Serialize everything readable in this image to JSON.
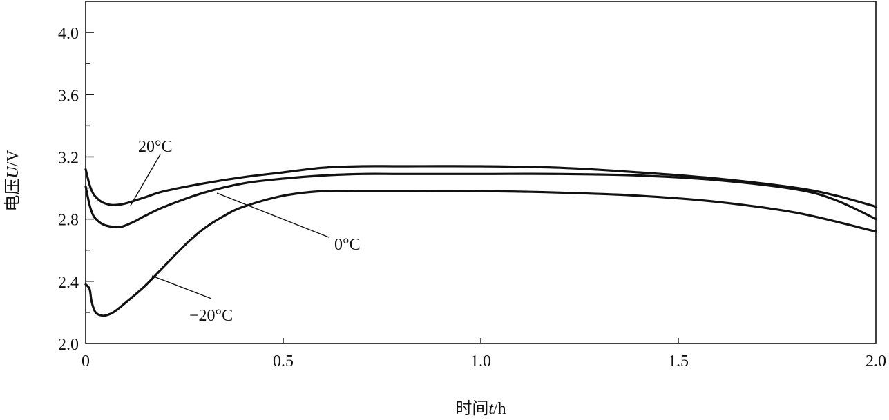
{
  "chart_data": {
    "type": "line",
    "xlabel_parts": [
      "时间",
      "t",
      "/h"
    ],
    "ylabel_parts": [
      "电压",
      "U",
      "/V"
    ],
    "xlim": [
      0,
      2.0
    ],
    "ylim": [
      2.0,
      4.2
    ],
    "x_ticks": [
      0,
      0.5,
      1.0,
      1.5,
      2.0
    ],
    "x_tick_labels": [
      "0",
      "0.5",
      "1.0",
      "1.5",
      "2.0"
    ],
    "y_major_ticks": [
      2.0,
      2.4,
      2.8,
      3.2,
      3.6,
      4.0
    ],
    "y_tick_labels": [
      "2.0",
      "2.4",
      "2.8",
      "3.2",
      "3.6",
      "4.0"
    ],
    "y_minor_ticks": [
      2.2,
      2.6,
      3.0,
      3.4,
      3.8
    ],
    "grid": false,
    "line_color": "#111111",
    "series": [
      {
        "name": "20°C",
        "x": [
          0,
          0.01,
          0.02,
          0.035,
          0.05,
          0.07,
          0.1,
          0.15,
          0.2,
          0.3,
          0.4,
          0.5,
          0.6,
          0.7,
          0.8,
          1.0,
          1.2,
          1.4,
          1.6,
          1.8,
          1.9,
          2.0
        ],
        "y": [
          3.12,
          3.02,
          2.96,
          2.92,
          2.9,
          2.89,
          2.9,
          2.94,
          2.98,
          3.03,
          3.07,
          3.1,
          3.13,
          3.14,
          3.14,
          3.14,
          3.13,
          3.1,
          3.06,
          3.0,
          2.95,
          2.88
        ]
      },
      {
        "name": "0°C",
        "x": [
          0,
          0.01,
          0.02,
          0.035,
          0.05,
          0.07,
          0.09,
          0.12,
          0.15,
          0.2,
          0.3,
          0.4,
          0.5,
          0.6,
          0.7,
          0.8,
          1.0,
          1.2,
          1.4,
          1.6,
          1.8,
          1.9,
          2.0
        ],
        "y": [
          3.01,
          2.89,
          2.82,
          2.78,
          2.76,
          2.75,
          2.75,
          2.78,
          2.82,
          2.88,
          2.97,
          3.03,
          3.06,
          3.08,
          3.09,
          3.09,
          3.09,
          3.09,
          3.08,
          3.05,
          2.99,
          2.92,
          2.8
        ]
      },
      {
        "name": "−20°C",
        "x": [
          0,
          0.01,
          0.015,
          0.025,
          0.04,
          0.05,
          0.07,
          0.1,
          0.15,
          0.2,
          0.25,
          0.3,
          0.35,
          0.4,
          0.5,
          0.6,
          0.7,
          0.8,
          1.0,
          1.2,
          1.4,
          1.6,
          1.8,
          2.0
        ],
        "y": [
          2.38,
          2.35,
          2.27,
          2.2,
          2.18,
          2.18,
          2.2,
          2.26,
          2.37,
          2.5,
          2.63,
          2.74,
          2.82,
          2.88,
          2.95,
          2.98,
          2.98,
          2.98,
          2.98,
          2.97,
          2.95,
          2.91,
          2.84,
          2.72
        ]
      }
    ],
    "annotations": [
      {
        "text": "20°C",
        "series": "20°C"
      },
      {
        "text": "0°C",
        "series": "0°C"
      },
      {
        "text": "−20°C",
        "series": "−20°C"
      }
    ]
  }
}
